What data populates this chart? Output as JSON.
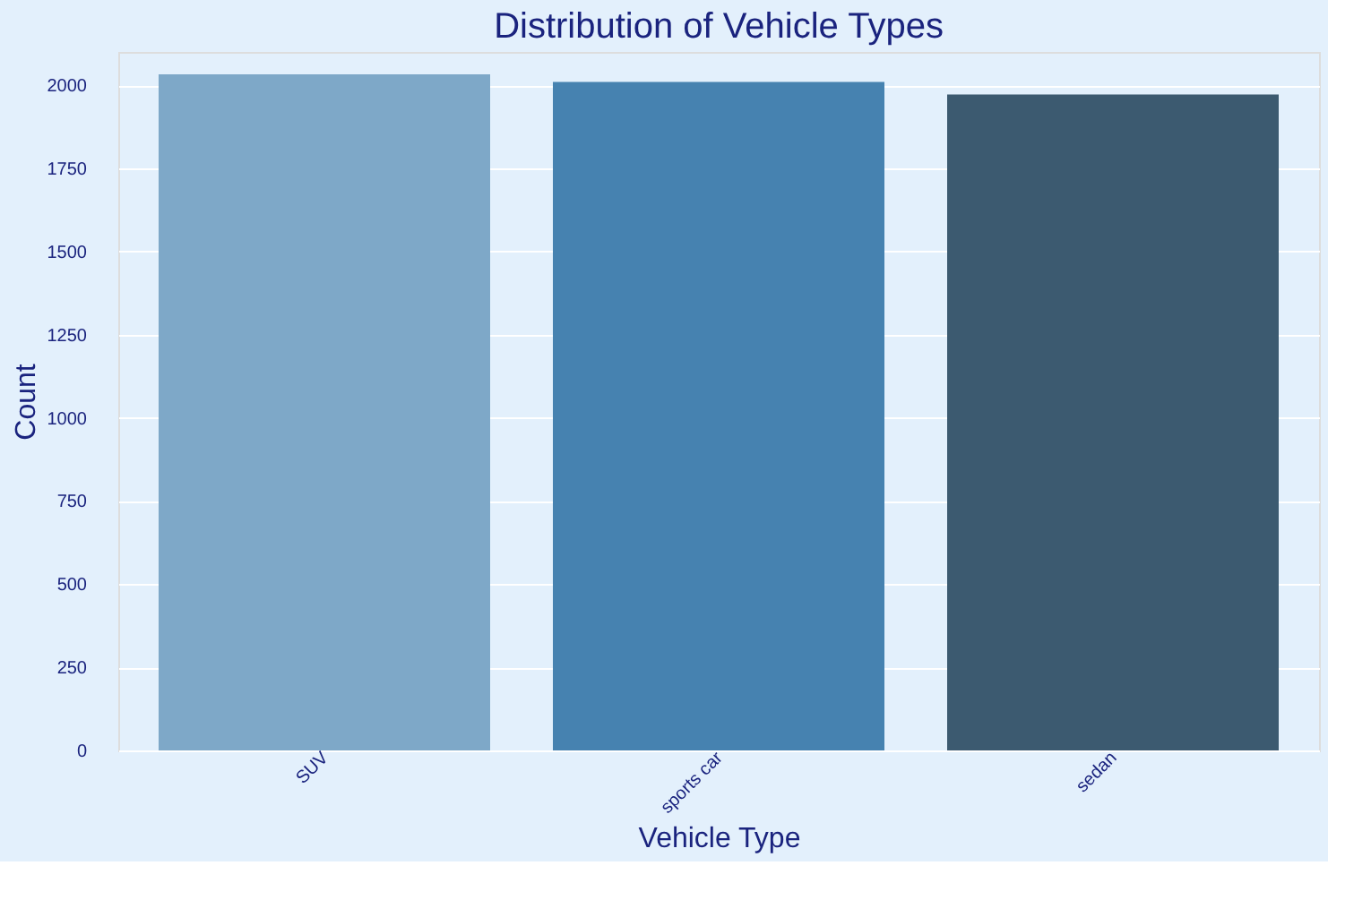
{
  "chart_data": {
    "type": "bar",
    "title": "Distribution of Vehicle Types",
    "xlabel": "Vehicle Type",
    "ylabel": "Count",
    "categories": [
      "SUV",
      "sports car",
      "sedan"
    ],
    "values": [
      2033,
      2010,
      1972
    ],
    "colors": [
      "#7ea8c8",
      "#4682b0",
      "#3c5a70"
    ],
    "ylim": [
      0,
      2100
    ],
    "yticks": [
      0,
      250,
      500,
      750,
      1000,
      1250,
      1500,
      1750,
      2000
    ],
    "grid": "y"
  }
}
